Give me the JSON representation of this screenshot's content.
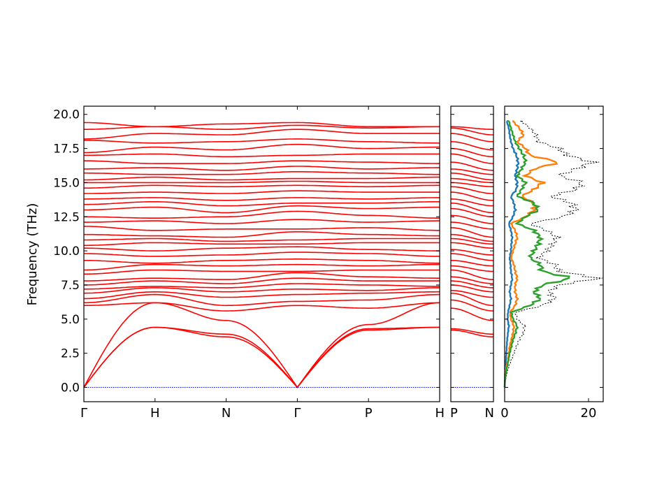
{
  "chart_data": [
    {
      "type": "line",
      "panel": "band-structure-main",
      "ylabel": "Frequency (THz)",
      "ylim": [
        -1.05,
        20.6
      ],
      "y_ticks": [
        0.0,
        2.5,
        5.0,
        7.5,
        10.0,
        12.5,
        15.0,
        17.5,
        20.0
      ],
      "y_tick_labels": [
        "0.0",
        "2.5",
        "5.0",
        "7.5",
        "10.0",
        "12.5",
        "15.0",
        "17.5",
        "20.0"
      ],
      "x_ticks": [
        "Γ",
        "H",
        "N",
        "Γ",
        "P",
        "H"
      ],
      "band_color": "#ff0000",
      "zero_line_color": "#0000ff",
      "series": [
        {
          "values": [
            0.0,
            4.4,
            3.7,
            0.0,
            4.2,
            4.4
          ]
        },
        {
          "values": [
            0.0,
            4.4,
            3.9,
            0.0,
            4.3,
            4.4
          ]
        },
        {
          "values": [
            0.0,
            6.2,
            4.9,
            0.0,
            4.6,
            6.2
          ]
        },
        {
          "values": [
            6.0,
            6.2,
            5.6,
            6.0,
            5.8,
            6.2
          ]
        },
        {
          "values": [
            6.2,
            6.8,
            6.0,
            6.3,
            6.4,
            6.8
          ]
        },
        {
          "values": [
            6.5,
            7.0,
            6.6,
            6.8,
            6.9,
            7.0
          ]
        },
        {
          "values": [
            6.9,
            7.3,
            7.0,
            7.2,
            7.1,
            7.3
          ]
        },
        {
          "values": [
            7.2,
            7.4,
            7.3,
            7.6,
            7.5,
            7.4
          ]
        },
        {
          "values": [
            7.5,
            7.8,
            7.6,
            8.0,
            7.8,
            7.8
          ]
        },
        {
          "values": [
            7.8,
            8.0,
            7.9,
            8.4,
            8.1,
            8.0
          ]
        },
        {
          "values": [
            8.3,
            8.6,
            8.5,
            8.5,
            8.6,
            8.6
          ]
        },
        {
          "values": [
            8.6,
            9.0,
            8.9,
            9.0,
            8.9,
            9.0
          ]
        },
        {
          "values": [
            9.3,
            9.1,
            9.3,
            9.4,
            9.3,
            9.1
          ]
        },
        {
          "values": [
            9.8,
            9.6,
            9.7,
            9.9,
            9.8,
            9.6
          ]
        },
        {
          "values": [
            10.2,
            10.0,
            10.2,
            10.3,
            10.1,
            10.0
          ]
        },
        {
          "values": [
            10.4,
            10.6,
            10.5,
            10.5,
            10.6,
            10.6
          ]
        },
        {
          "values": [
            10.8,
            10.9,
            10.7,
            10.8,
            10.9,
            10.9
          ]
        },
        {
          "values": [
            11.2,
            11.1,
            11.0,
            11.4,
            11.2,
            11.1
          ]
        },
        {
          "values": [
            11.8,
            11.5,
            11.6,
            11.6,
            11.7,
            11.5
          ]
        },
        {
          "values": [
            12.1,
            12.2,
            12.0,
            12.3,
            12.1,
            12.2
          ]
        },
        {
          "values": [
            12.5,
            12.4,
            12.5,
            12.9,
            12.6,
            12.4
          ]
        },
        {
          "values": [
            13.0,
            13.2,
            12.8,
            13.3,
            13.1,
            13.2
          ]
        },
        {
          "values": [
            13.4,
            13.6,
            13.3,
            13.5,
            13.5,
            13.6
          ]
        },
        {
          "values": [
            13.8,
            13.9,
            13.7,
            13.9,
            13.8,
            13.9
          ]
        },
        {
          "values": [
            14.2,
            14.3,
            14.2,
            14.4,
            14.3,
            14.3
          ]
        },
        {
          "values": [
            14.6,
            14.8,
            14.7,
            14.8,
            14.7,
            14.8
          ]
        },
        {
          "values": [
            15.0,
            15.0,
            15.0,
            15.1,
            15.0,
            15.0
          ]
        },
        {
          "values": [
            15.2,
            15.4,
            15.2,
            15.3,
            15.3,
            15.4
          ]
        },
        {
          "values": [
            15.7,
            15.6,
            15.6,
            15.8,
            15.7,
            15.6
          ]
        },
        {
          "values": [
            16.0,
            16.1,
            15.9,
            16.2,
            16.0,
            16.1
          ]
        },
        {
          "values": [
            16.6,
            16.4,
            16.4,
            16.6,
            16.5,
            16.4
          ]
        },
        {
          "values": [
            17.0,
            17.1,
            16.9,
            17.0,
            17.1,
            17.1
          ]
        },
        {
          "values": [
            17.2,
            17.6,
            17.4,
            17.8,
            17.5,
            17.6
          ]
        },
        {
          "values": [
            18.1,
            17.9,
            18.0,
            18.2,
            18.0,
            17.9
          ]
        },
        {
          "values": [
            18.2,
            18.6,
            18.5,
            18.9,
            18.6,
            18.6
          ]
        },
        {
          "values": [
            18.9,
            19.1,
            18.9,
            19.2,
            19.0,
            19.1
          ]
        },
        {
          "values": [
            19.4,
            19.1,
            19.3,
            19.4,
            19.1,
            19.1
          ]
        }
      ]
    },
    {
      "type": "line",
      "panel": "band-structure-pn",
      "ylim": [
        -1.05,
        20.6
      ],
      "x_ticks": [
        "P",
        "N"
      ],
      "band_color": "#ff0000",
      "zero_line_color": "#0000ff",
      "series": [
        {
          "values": [
            4.2,
            3.7
          ]
        },
        {
          "values": [
            4.3,
            3.9
          ]
        },
        {
          "values": [
            5.8,
            4.9
          ]
        },
        {
          "values": [
            6.4,
            5.6
          ]
        },
        {
          "values": [
            6.9,
            6.0
          ]
        },
        {
          "values": [
            7.1,
            6.6
          ]
        },
        {
          "values": [
            7.5,
            7.0
          ]
        },
        {
          "values": [
            7.8,
            7.3
          ]
        },
        {
          "values": [
            8.1,
            7.6
          ]
        },
        {
          "values": [
            8.6,
            7.9
          ]
        },
        {
          "values": [
            8.9,
            8.5
          ]
        },
        {
          "values": [
            9.3,
            8.9
          ]
        },
        {
          "values": [
            9.8,
            9.3
          ]
        },
        {
          "values": [
            10.1,
            9.7
          ]
        },
        {
          "values": [
            10.6,
            10.2
          ]
        },
        {
          "values": [
            10.9,
            10.5
          ]
        },
        {
          "values": [
            11.2,
            10.7
          ]
        },
        {
          "values": [
            11.7,
            11.0
          ]
        },
        {
          "values": [
            12.1,
            11.6
          ]
        },
        {
          "values": [
            12.6,
            12.0
          ]
        },
        {
          "values": [
            13.1,
            12.5
          ]
        },
        {
          "values": [
            13.5,
            12.8
          ]
        },
        {
          "values": [
            13.8,
            13.3
          ]
        },
        {
          "values": [
            14.3,
            13.7
          ]
        },
        {
          "values": [
            14.7,
            14.2
          ]
        },
        {
          "values": [
            15.0,
            14.7
          ]
        },
        {
          "values": [
            15.3,
            15.0
          ]
        },
        {
          "values": [
            15.7,
            15.2
          ]
        },
        {
          "values": [
            16.0,
            15.6
          ]
        },
        {
          "values": [
            16.5,
            15.9
          ]
        },
        {
          "values": [
            17.1,
            16.4
          ]
        },
        {
          "values": [
            17.5,
            16.9
          ]
        },
        {
          "values": [
            18.0,
            17.4
          ]
        },
        {
          "values": [
            18.6,
            18.0
          ]
        },
        {
          "values": [
            19.0,
            18.5
          ]
        },
        {
          "values": [
            19.1,
            18.9
          ]
        }
      ]
    },
    {
      "type": "line",
      "panel": "density-of-states",
      "xlim": [
        0,
        23.5
      ],
      "ylim": [
        -1.05,
        20.6
      ],
      "x_ticks": [
        0,
        20
      ],
      "x_tick_labels": [
        "0",
        "20"
      ],
      "y": [
        0.0,
        0.5,
        1.0,
        1.5,
        2.0,
        2.5,
        3.0,
        3.5,
        4.0,
        4.5,
        5.0,
        5.5,
        6.0,
        6.5,
        7.0,
        7.5,
        8.0,
        8.5,
        9.0,
        9.5,
        10.0,
        10.5,
        11.0,
        11.5,
        12.0,
        12.5,
        13.0,
        13.5,
        14.0,
        14.5,
        15.0,
        15.5,
        16.0,
        16.5,
        17.0,
        17.5,
        18.0,
        18.5,
        19.0,
        19.5
      ],
      "series": [
        {
          "color": "#000000",
          "values": [
            0.0,
            0.2,
            0.5,
            1.0,
            1.6,
            2.2,
            2.8,
            3.5,
            4.5,
            4.8,
            3.0,
            2.6,
            9.0,
            12.0,
            10.5,
            13.0,
            22.5,
            13.0,
            12.0,
            8.0,
            10.0,
            11.5,
            12.5,
            10.0,
            6.0,
            14.0,
            17.0,
            16.0,
            11.0,
            17.0,
            18.5,
            13.0,
            17.0,
            21.0,
            15.0,
            13.0,
            8.0,
            7.5,
            6.0,
            4.0
          ]
        },
        {
          "color": "#1f77b4",
          "values": [
            0.0,
            0.05,
            0.1,
            0.2,
            0.3,
            0.4,
            0.5,
            0.6,
            0.8,
            1.0,
            0.7,
            0.8,
            1.2,
            1.5,
            1.2,
            1.5,
            1.8,
            1.5,
            1.4,
            1.2,
            1.5,
            1.6,
            1.8,
            1.5,
            1.0,
            2.0,
            2.5,
            2.2,
            1.5,
            2.8,
            3.0,
            2.5,
            3.0,
            3.2,
            2.8,
            2.0,
            1.5,
            1.2,
            1.0,
            0.5
          ]
        },
        {
          "color": "#ff7f0e",
          "values": [
            0.0,
            0.1,
            0.2,
            0.4,
            0.8,
            1.0,
            1.2,
            1.6,
            2.0,
            2.2,
            1.5,
            1.3,
            2.5,
            3.0,
            2.5,
            2.5,
            3.0,
            2.5,
            2.2,
            1.5,
            2.0,
            2.5,
            3.0,
            2.5,
            1.5,
            5.0,
            7.0,
            7.0,
            4.0,
            7.0,
            9.0,
            5.0,
            7.0,
            13.0,
            6.0,
            5.0,
            3.0,
            4.5,
            3.5,
            2.0
          ]
        },
        {
          "color": "#2ca02c",
          "values": [
            0.0,
            0.1,
            0.3,
            0.6,
            0.9,
            1.2,
            1.6,
            2.0,
            2.6,
            3.0,
            2.0,
            1.6,
            6.0,
            8.5,
            7.0,
            9.0,
            16.0,
            9.0,
            8.5,
            6.0,
            7.0,
            8.0,
            8.5,
            7.0,
            3.0,
            5.0,
            8.0,
            7.0,
            3.0,
            4.0,
            5.0,
            3.0,
            4.0,
            5.0,
            4.5,
            3.5,
            2.5,
            2.0,
            1.5,
            1.0
          ]
        }
      ]
    }
  ]
}
